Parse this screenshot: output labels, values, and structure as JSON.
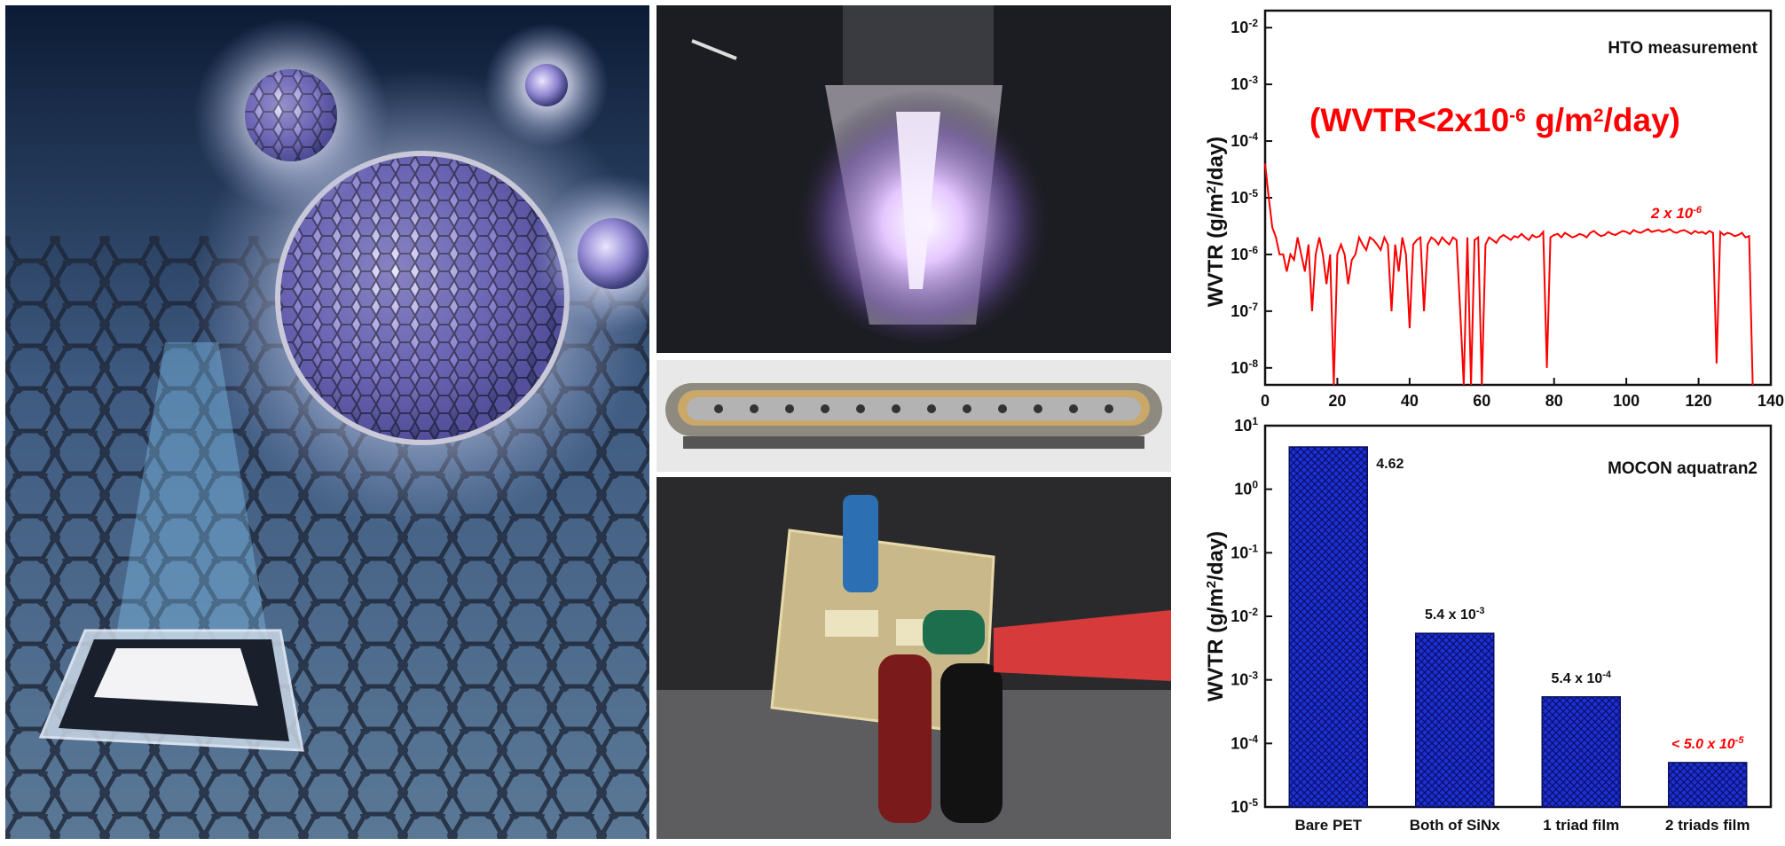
{
  "photos": {
    "nanoparticle": {
      "icon": "fullerene-nanoparticle-illustration"
    },
    "plasma": {
      "icon": "plasma-source-photo"
    },
    "electrode": {
      "icon": "linear-electrode-photo"
    },
    "device": {
      "icon": "flexible-device-test-photo"
    }
  },
  "chart_data": [
    {
      "type": "line",
      "title": "HTO measurement",
      "annotation": "(WVTR<2x10",
      "annotation_sup": "-6",
      "annotation_tail": " g/m",
      "annotation_sup2": "2",
      "annotation_end": "/day)",
      "series_label": "2 x 10",
      "series_label_sup": "-6",
      "ylabel": "WVTR (g/m",
      "ylabel_sup": "2",
      "ylabel_end": "/day)",
      "xlabel": "",
      "xlim": [
        0,
        140
      ],
      "ylim_log10": [
        -8.3,
        -1.7
      ],
      "y_scale": "log",
      "x_ticks": [
        "0",
        "20",
        "40",
        "60",
        "80",
        "100",
        "120",
        "140"
      ],
      "y_ticks": [
        {
          "base": "10",
          "exp": "-2"
        },
        {
          "base": "10",
          "exp": "-3"
        },
        {
          "base": "10",
          "exp": "-4"
        },
        {
          "base": "10",
          "exp": "-5"
        },
        {
          "base": "10",
          "exp": "-6"
        },
        {
          "base": "10",
          "exp": "-7"
        },
        {
          "base": "10",
          "exp": "-8"
        }
      ],
      "series_color": "#ff0000",
      "x": [
        0,
        1,
        2,
        3,
        4,
        5,
        6,
        7,
        8,
        9,
        10,
        11,
        12,
        13,
        14,
        15,
        16,
        17,
        18,
        19,
        20,
        21,
        22,
        23,
        24,
        25,
        26,
        27,
        28,
        29,
        30,
        31,
        32,
        33,
        34,
        35,
        36,
        37,
        38,
        39,
        40,
        41,
        42,
        43,
        44,
        45,
        46,
        47,
        48,
        49,
        50,
        51,
        52,
        53,
        54,
        55,
        56,
        57,
        58,
        59,
        60,
        61,
        62,
        63,
        64,
        65,
        66,
        67,
        68,
        69,
        70,
        71,
        72,
        73,
        74,
        75,
        76,
        77,
        78,
        79,
        80,
        81,
        82,
        83,
        84,
        85,
        86,
        87,
        88,
        89,
        90,
        91,
        92,
        93,
        94,
        95,
        96,
        97,
        98,
        99,
        100,
        101,
        102,
        103,
        104,
        105,
        106,
        107,
        108,
        109,
        110,
        111,
        112,
        113,
        114,
        115,
        116,
        117,
        118,
        119,
        120,
        121,
        122,
        123,
        124,
        125,
        126,
        127,
        128,
        129,
        130,
        131,
        132,
        133,
        134,
        135
      ],
      "y": [
        4e-05,
        1e-05,
        3e-06,
        2e-06,
        1e-06,
        1e-06,
        5e-07,
        1e-06,
        8e-07,
        2e-06,
        1e-06,
        5e-07,
        1.5e-06,
        1e-07,
        1e-06,
        2e-06,
        1e-06,
        3e-07,
        1e-06,
        5e-09,
        1e-06,
        1.5e-06,
        1e-06,
        3e-07,
        8e-07,
        1e-06,
        2e-06,
        1.5e-06,
        1.2e-06,
        2e-06,
        1.8e-06,
        1.5e-06,
        1.2e-06,
        2e-06,
        1.5e-06,
        1e-07,
        1.5e-06,
        5e-07,
        2e-06,
        1e-06,
        5e-08,
        1.5e-06,
        1.8e-06,
        2e-06,
        1e-07,
        1.5e-06,
        2e-06,
        1.8e-06,
        1.5e-06,
        2e-06,
        1.7e-06,
        1.5e-06,
        2e-06,
        1.8e-06,
        1e-07,
        5e-09,
        2e-06,
        5e-09,
        1.8e-06,
        2e-06,
        5e-09,
        1.5e-06,
        2e-06,
        1.8e-06,
        1.6e-06,
        2e-06,
        2.2e-06,
        2e-06,
        1.8e-06,
        2.1e-06,
        2e-06,
        2.3e-06,
        2e-06,
        1.8e-06,
        2.2e-06,
        2e-06,
        2.1e-06,
        2.5e-06,
        1e-08,
        2e-06,
        2.2e-06,
        2.3e-06,
        2e-06,
        2.4e-06,
        2.2e-06,
        2e-06,
        2.1e-06,
        2.3e-06,
        2.2e-06,
        2e-06,
        2.4e-06,
        2.6e-06,
        2.3e-06,
        2.1e-06,
        2.2e-06,
        2.5e-06,
        2.3e-06,
        2.2e-06,
        2.4e-06,
        2.6e-06,
        2.5e-06,
        2.3e-06,
        2.7e-06,
        2.5e-06,
        2.4e-06,
        2.6e-06,
        2.8e-06,
        2.5e-06,
        2.6e-06,
        2.7e-06,
        2.5e-06,
        2.6e-06,
        2.8e-06,
        2.5e-06,
        2.4e-06,
        2.6e-06,
        2.7e-06,
        2.5e-06,
        2.3e-06,
        2.6e-06,
        2.4e-06,
        2.5e-06,
        2.3e-06,
        2.6e-06,
        2.4e-06,
        1.2e-08,
        2.5e-06,
        2.2e-06,
        2.4e-06,
        2.3e-06,
        2.1e-06,
        2.2e-06,
        2.4e-06,
        2e-06,
        2.1e-06,
        5e-09
      ]
    },
    {
      "type": "bar",
      "title": "MOCON aquatran2",
      "ylabel": "WVTR (g/m",
      "ylabel_sup": "2",
      "ylabel_end": "/day)",
      "y_scale": "log",
      "ylim_log10": [
        -5,
        1
      ],
      "y_ticks": [
        {
          "base": "10",
          "exp": "1"
        },
        {
          "base": "10",
          "exp": "0"
        },
        {
          "base": "10",
          "exp": "-1"
        },
        {
          "base": "10",
          "exp": "-2"
        },
        {
          "base": "10",
          "exp": "-3"
        },
        {
          "base": "10",
          "exp": "-4"
        },
        {
          "base": "10",
          "exp": "-5"
        }
      ],
      "categories": [
        "Bare PET",
        "Both of SiNx",
        "1 triad film",
        "2 triads  film"
      ],
      "values": [
        4.62,
        0.0054,
        0.00054,
        5e-05
      ],
      "data_labels": [
        {
          "text": "4.62",
          "sup": "",
          "color": "#111111"
        },
        {
          "text": "5.4 x 10",
          "sup": "-3",
          "color": "#111111"
        },
        {
          "text": "5.4 x 10",
          "sup": "-4",
          "color": "#111111"
        },
        {
          "text": "< 5.0 x 10",
          "sup": "-5",
          "color": "#ff0000"
        }
      ],
      "bar_color": "#1d2fd6"
    }
  ]
}
